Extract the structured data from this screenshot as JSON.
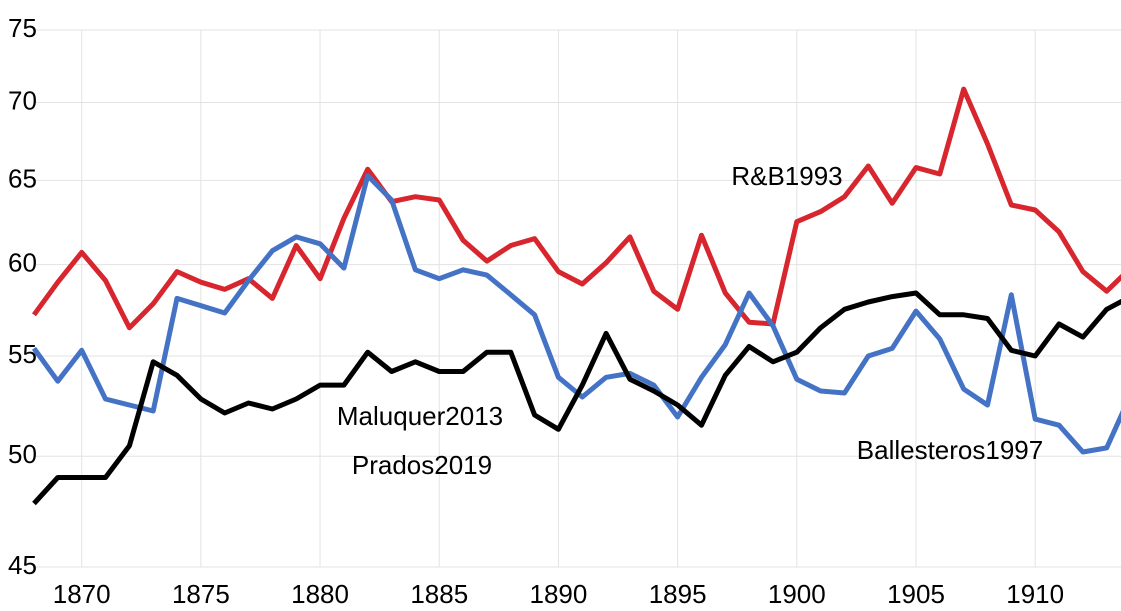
{
  "chart_data": {
    "type": "line",
    "x": [
      1868,
      1869,
      1870,
      1871,
      1872,
      1873,
      1874,
      1875,
      1876,
      1877,
      1878,
      1879,
      1880,
      1881,
      1882,
      1883,
      1884,
      1885,
      1886,
      1887,
      1888,
      1889,
      1890,
      1891,
      1892,
      1893,
      1894,
      1895,
      1896,
      1897,
      1898,
      1899,
      1900,
      1901,
      1902,
      1903,
      1904,
      1905,
      1906,
      1907,
      1908,
      1909,
      1910,
      1911,
      1912,
      1913,
      1914
    ],
    "series": [
      {
        "name": "R&B1993",
        "color": "#d7262d",
        "values": [
          57.2,
          59.0,
          60.7,
          59.1,
          56.5,
          57.8,
          59.6,
          59.0,
          58.6,
          59.2,
          58.1,
          61.1,
          59.2,
          62.7,
          65.7,
          63.7,
          64.0,
          63.8,
          61.4,
          60.2,
          61.1,
          61.5,
          59.6,
          58.9,
          60.1,
          61.6,
          58.5,
          57.5,
          61.7,
          58.4,
          56.8,
          56.7,
          62.5,
          63.1,
          64.0,
          65.9,
          63.6,
          65.8,
          65.4,
          70.9,
          67.3,
          63.5,
          63.2,
          61.9,
          59.6,
          58.5,
          59.8
        ]
      },
      {
        "name": "Ballesteros1997",
        "color": "#4472c4",
        "values": [
          55.4,
          53.7,
          55.3,
          52.8,
          52.5,
          52.2,
          58.1,
          57.7,
          57.3,
          59.1,
          60.8,
          61.6,
          61.2,
          59.8,
          65.3,
          63.8,
          59.7,
          59.2,
          59.7,
          59.4,
          58.3,
          57.2,
          53.9,
          52.9,
          53.9,
          54.1,
          53.5,
          51.9,
          53.9,
          55.6,
          58.4,
          56.6,
          53.8,
          53.2,
          53.1,
          55.0,
          55.4,
          57.4,
          55.9,
          53.3,
          52.5,
          58.3,
          51.8,
          51.5,
          50.2,
          50.4,
          53.0
        ]
      },
      {
        "name": "Prados2019",
        "color": "#000000",
        "values": [
          47.8,
          49.0,
          49.0,
          49.0,
          50.5,
          54.7,
          54.0,
          52.8,
          52.1,
          52.6,
          52.3,
          52.8,
          53.5,
          53.5,
          55.2,
          54.2,
          54.7,
          54.2,
          54.2,
          55.2,
          55.2,
          52.0,
          51.3,
          53.5,
          56.2,
          53.8,
          53.2,
          52.5,
          51.5,
          54.0,
          55.5,
          54.7,
          55.2,
          56.5,
          57.5,
          57.9,
          58.2,
          58.4,
          57.2,
          57.2,
          57.0,
          55.3,
          55.0,
          56.7,
          56.0,
          57.5,
          58.2
        ]
      }
    ],
    "annotations": [
      "Maluquer2013"
    ],
    "xlim": [
      1868,
      1913.6
    ],
    "xticks": [
      1870,
      1875,
      1880,
      1885,
      1890,
      1895,
      1900,
      1905,
      1910
    ],
    "ylim": [
      45,
      75
    ],
    "yticks": [
      45,
      50,
      55,
      60,
      65,
      70,
      75
    ],
    "log_scale": true,
    "grid": true
  }
}
